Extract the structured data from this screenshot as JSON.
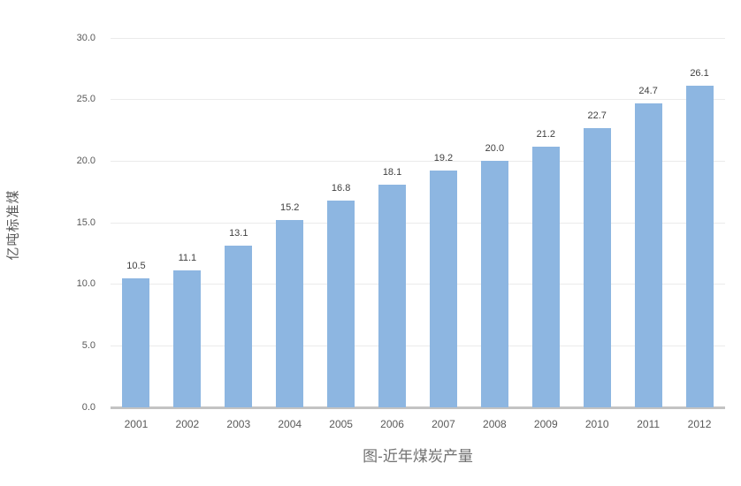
{
  "chart_data": {
    "type": "bar",
    "title": "图-近年煤炭产量",
    "xlabel": "",
    "ylabel": "亿吨标准煤",
    "categories": [
      "2001",
      "2002",
      "2003",
      "2004",
      "2005",
      "2006",
      "2007",
      "2008",
      "2009",
      "2010",
      "2011",
      "2012"
    ],
    "values": [
      10.5,
      11.1,
      13.1,
      15.2,
      16.8,
      18.1,
      19.2,
      20.0,
      21.2,
      22.7,
      24.7,
      26.1
    ],
    "data_labels": [
      "10.5",
      "11.1",
      "13.1",
      "15.2",
      "16.8",
      "18.1",
      "19.2",
      "20.0",
      "21.2",
      "22.7",
      "24.7",
      "26.1"
    ],
    "ylim": [
      0,
      30
    ],
    "ytick_step": 5,
    "ytick_labels": [
      "0.0",
      "5.0",
      "10.0",
      "15.0",
      "20.0",
      "25.0",
      "30.0"
    ],
    "grid": true,
    "legend_position": "none",
    "colors": {
      "bar": "#8db6e1",
      "grid": "#ebebeb",
      "axis": "#c3c3c3",
      "tick_text": "#595959",
      "data_label_text": "#404040",
      "title_text": "#707070"
    }
  }
}
